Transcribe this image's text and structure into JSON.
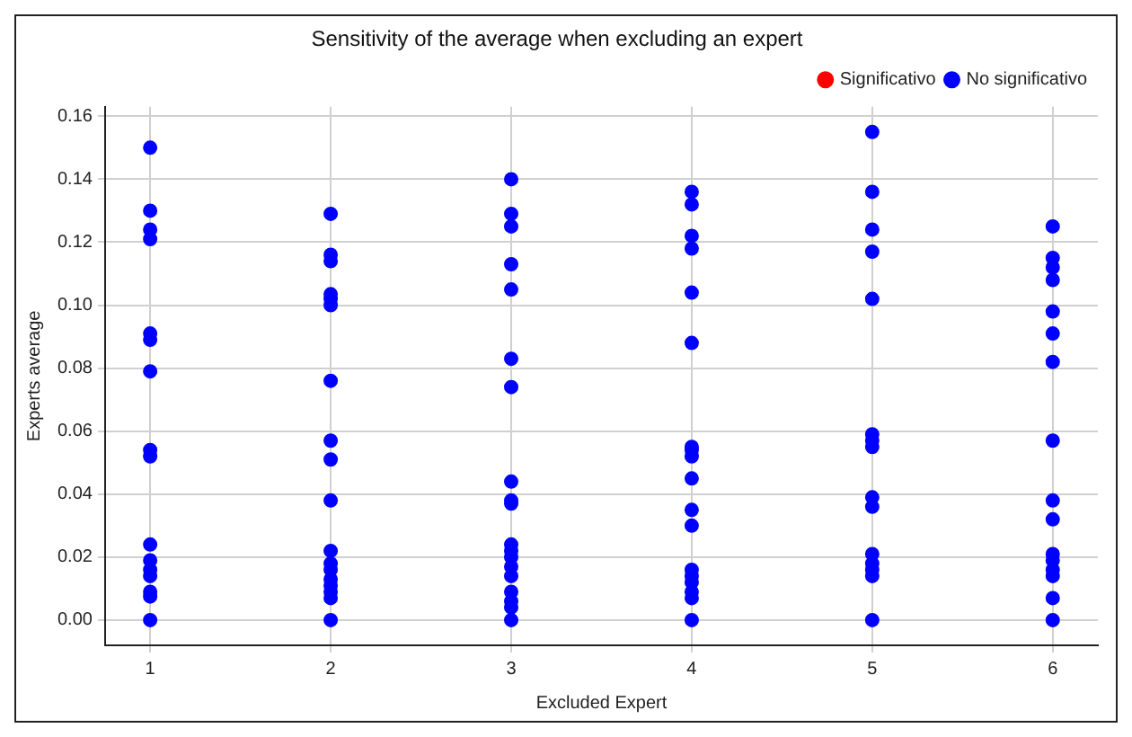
{
  "chart_data": {
    "type": "scatter",
    "title": "Sensitivity of the average when excluding an expert",
    "xlabel": "Excluded Expert",
    "ylabel": "Experts average",
    "xlim": [
      0.75,
      6.25
    ],
    "xticks": [
      1,
      2,
      3,
      4,
      5,
      6
    ],
    "ylim": [
      -0.008,
      0.163
    ],
    "yticks": [
      {
        "value": 0,
        "label": "0.00"
      },
      {
        "value": 0.02,
        "label": "0.02"
      },
      {
        "value": 0.04,
        "label": "0.04"
      },
      {
        "value": 0.06,
        "label": "0.06"
      },
      {
        "value": 0.08,
        "label": "0.08"
      },
      {
        "value": 0.1,
        "label": "0.10"
      },
      {
        "value": 0.12,
        "label": "0.12"
      },
      {
        "value": 0.14,
        "label": "0.14"
      },
      {
        "value": 0.16,
        "label": "0.16"
      }
    ],
    "grid": true,
    "legend": "top right",
    "marker": "circle",
    "series": [
      {
        "name": "Significativo",
        "color": "#ff0000"
      },
      {
        "name": "No significativo",
        "color": "#0000ff",
        "x": [
          1,
          1,
          1,
          1,
          1,
          1,
          1,
          1,
          1,
          1,
          1,
          1,
          1,
          1,
          1,
          1,
          2,
          2,
          2,
          2,
          2,
          2,
          2,
          2,
          2,
          2,
          2,
          2,
          2,
          2,
          2,
          2,
          2,
          2,
          3,
          3,
          3,
          3,
          3,
          3,
          3,
          3,
          3,
          3,
          3,
          3,
          3,
          3,
          3,
          3,
          3,
          3,
          3,
          4,
          4,
          4,
          4,
          4,
          4,
          4,
          4,
          4,
          4,
          4,
          4,
          4,
          4,
          4,
          4,
          4,
          4,
          5,
          5,
          5,
          5,
          5,
          5,
          5,
          5,
          5,
          5,
          5,
          5,
          5,
          5,
          5,
          6,
          6,
          6,
          6,
          6,
          6,
          6,
          6,
          6,
          6,
          6,
          6,
          6,
          6,
          6,
          6
        ],
        "values": [
          0.15,
          0.13,
          0.124,
          0.121,
          0.091,
          0.089,
          0.079,
          0.054,
          0.052,
          0.024,
          0.019,
          0.016,
          0.014,
          0.009,
          0.0075,
          0,
          0.129,
          0.116,
          0.114,
          0.1035,
          0.102,
          0.1,
          0.076,
          0.057,
          0.051,
          0.038,
          0.022,
          0.018,
          0.016,
          0.013,
          0.011,
          0.009,
          0.007,
          0,
          0.14,
          0.129,
          0.125,
          0.113,
          0.105,
          0.083,
          0.074,
          0.044,
          0.038,
          0.037,
          0.024,
          0.022,
          0.02,
          0.017,
          0.014,
          0.009,
          0.006,
          0.004,
          0,
          0.136,
          0.132,
          0.122,
          0.118,
          0.104,
          0.088,
          0.055,
          0.054,
          0.052,
          0.045,
          0.035,
          0.03,
          0.016,
          0.014,
          0.012,
          0.009,
          0.007,
          0,
          0.155,
          0.136,
          0.124,
          0.117,
          0.102,
          0.059,
          0.057,
          0.055,
          0.039,
          0.036,
          0.021,
          0.018,
          0.016,
          0.014,
          0,
          0.125,
          0.115,
          0.112,
          0.108,
          0.098,
          0.091,
          0.082,
          0.057,
          0.038,
          0.032,
          0.021,
          0.019,
          0.016,
          0.014,
          0.007,
          0
        ]
      }
    ]
  }
}
